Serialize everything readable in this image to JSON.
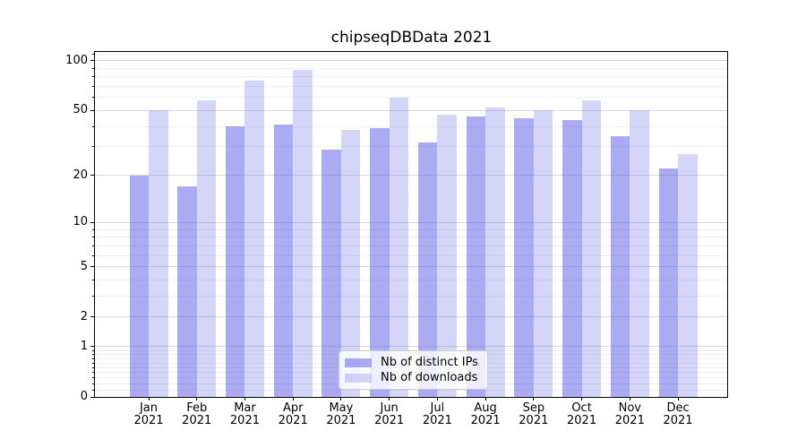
{
  "title": "chipseqDBData 2021",
  "chart_data": {
    "type": "bar",
    "title": "chipseqDBData 2021",
    "categories": [
      "Jan 2021",
      "Feb 2021",
      "Mar 2021",
      "Apr 2021",
      "May 2021",
      "Jun 2021",
      "Jul 2021",
      "Aug 2021",
      "Sep 2021",
      "Oct 2021",
      "Nov 2021",
      "Dec 2021"
    ],
    "x_tick_line1": [
      "Jan",
      "Feb",
      "Mar",
      "Apr",
      "May",
      "Jun",
      "Jul",
      "Aug",
      "Sep",
      "Oct",
      "Nov",
      "Dec"
    ],
    "x_tick_line2": [
      "2021",
      "2021",
      "2021",
      "2021",
      "2021",
      "2021",
      "2021",
      "2021",
      "2021",
      "2021",
      "2021",
      "2021"
    ],
    "series": [
      {
        "name": "Nb of distinct IPs",
        "key": "distinct-ips",
        "color": "rgba(88,88,232,0.5)",
        "color_hex_on_white": "#a8a8f4",
        "values": [
          20,
          17,
          40,
          41,
          29,
          39,
          32,
          46,
          45,
          44,
          35,
          22
        ]
      },
      {
        "name": "Nb of downloads",
        "key": "downloads",
        "color": "rgba(88,88,232,0.25)",
        "color_hex_on_white": "#d7d7f9",
        "values": [
          50,
          58,
          76,
          88,
          38,
          60,
          47,
          52,
          50,
          58,
          50,
          27
        ]
      }
    ],
    "y_axis": {
      "scale": "log1p",
      "ticks": [
        0,
        1,
        2,
        5,
        10,
        20,
        50,
        100
      ],
      "tick_labels": [
        "0",
        "1",
        "2",
        "5",
        "10",
        "20",
        "50",
        "100"
      ],
      "minor_ticks": [
        0.1,
        0.2,
        0.3,
        0.4,
        0.5,
        0.6,
        0.7,
        0.8,
        0.9,
        3,
        4,
        6,
        7,
        8,
        9,
        30,
        40,
        60,
        70,
        80,
        90,
        110
      ],
      "ylim": [
        0,
        113
      ]
    },
    "xlabel": "",
    "ylabel": "",
    "grid": {
      "major": true,
      "minor": true,
      "vertical": false
    },
    "legend": {
      "position": "lower center",
      "items": [
        "Nb of distinct IPs",
        "Nb of downloads"
      ]
    },
    "colors": {
      "grid_major": "#d7d7d7",
      "grid_minor": "#efefef",
      "spine": "#000000",
      "text": "#000000",
      "background": "#ffffff"
    }
  }
}
